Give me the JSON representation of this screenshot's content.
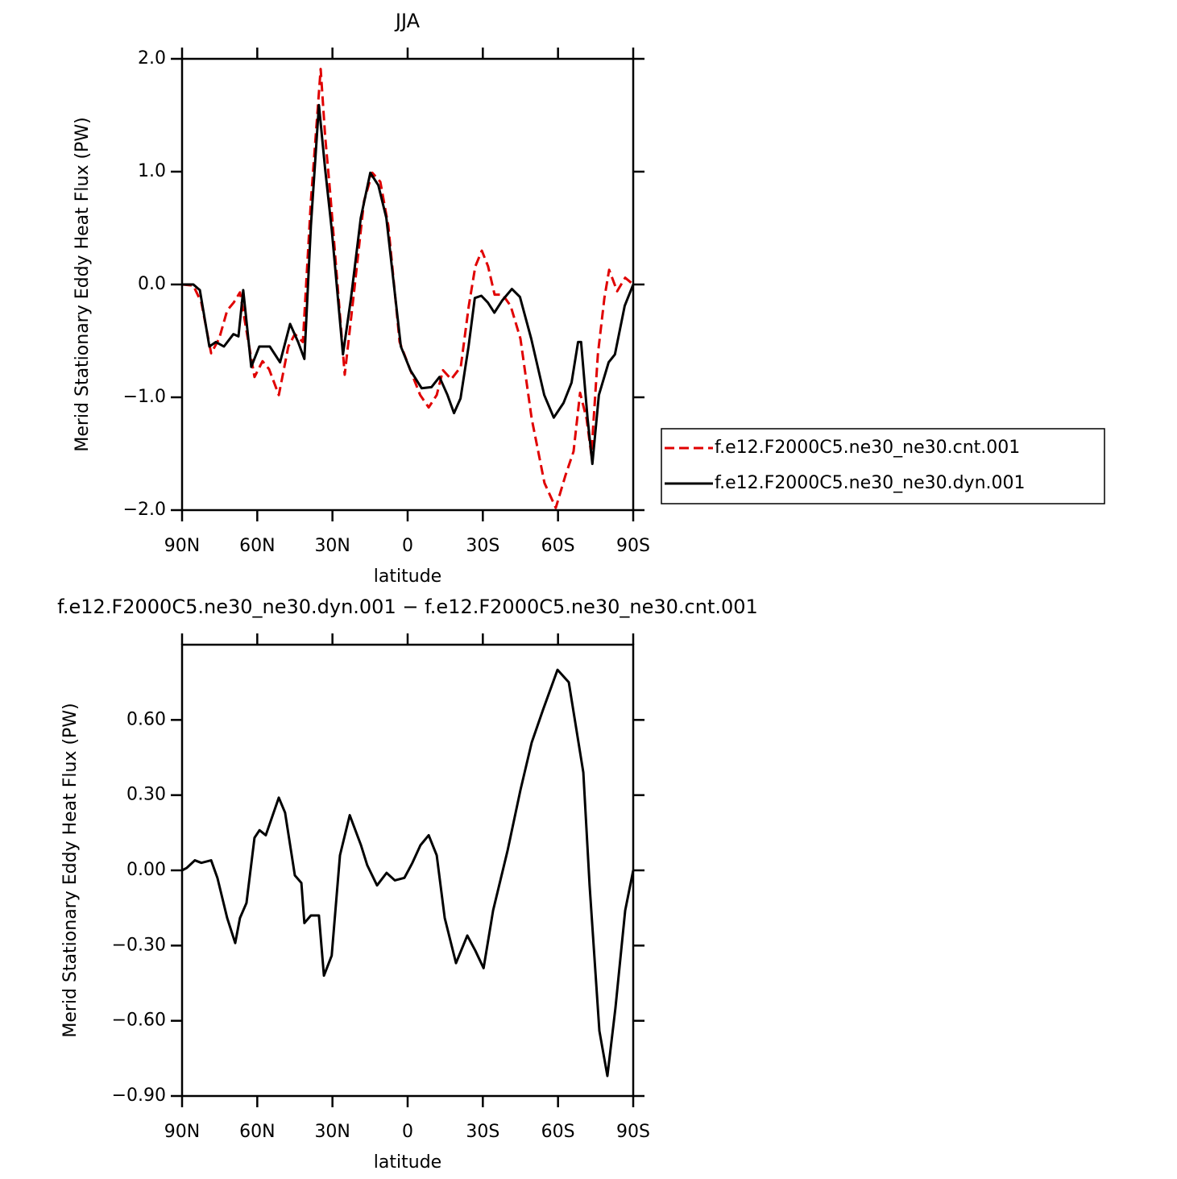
{
  "chart_data": [
    {
      "type": "line",
      "title": "JJA",
      "xlabel": "latitude",
      "ylabel": "Merid Stationary Eddy Heat Flux (PW)",
      "xlim": [
        90,
        -90
      ],
      "xticks": [
        {
          "value": 90,
          "label": "90N"
        },
        {
          "value": 60,
          "label": "60N"
        },
        {
          "value": 30,
          "label": "30N"
        },
        0,
        {
          "value": -30,
          "label": "30S"
        },
        {
          "value": -60,
          "label": "60S"
        },
        {
          "value": -90,
          "label": "90S"
        }
      ],
      "ylim": [
        -2,
        2
      ],
      "yticks": [
        {
          "value": -2,
          "label": "−2.0"
        },
        {
          "value": -1,
          "label": "−1.0"
        },
        {
          "value": 0,
          "label": "0.0"
        },
        {
          "value": 1,
          "label": "1.0"
        },
        {
          "value": 2,
          "label": "2.0"
        }
      ],
      "legend": "right",
      "series": [
        {
          "name": "f.e12.F2000C5.ne30_ne30.cnt.001",
          "color": "#e00000",
          "dash": true,
          "x": [
            90,
            85.5,
            82.3,
            78.4,
            75.2,
            72.0,
            69.4,
            66.9,
            64.3,
            61.1,
            57.9,
            55.3,
            51.4,
            47.6,
            45.0,
            41.8,
            38.6,
            34.7,
            32.9,
            30.9,
            25.1,
            21.3,
            17.4,
            14.1,
            10.9,
            7.7,
            3.2,
            -1.1,
            -5.0,
            -8.4,
            -11.6,
            -14.1,
            -17.4,
            -21.2,
            -24.4,
            -27.0,
            -29.6,
            -32.1,
            -34.7,
            -37.9,
            -41.1,
            -45.0,
            -49.5,
            -54.6,
            -59.1,
            -63.0,
            -66.2,
            -68.8,
            -71.4,
            -73.3,
            -75.9,
            -78.5,
            -80.4,
            -83.6,
            -86.8,
            -90
          ],
          "values": [
            0,
            -0.01,
            -0.16,
            -0.61,
            -0.48,
            -0.23,
            -0.16,
            -0.07,
            -0.41,
            -0.82,
            -0.68,
            -0.75,
            -0.98,
            -0.55,
            -0.44,
            -0.51,
            0.74,
            1.91,
            1.31,
            0.81,
            -0.8,
            -0.05,
            0.74,
            0.99,
            0.91,
            0.52,
            -0.51,
            -0.76,
            -0.98,
            -1.09,
            -0.98,
            -0.76,
            -0.84,
            -0.73,
            -0.19,
            0.16,
            0.3,
            0.16,
            -0.09,
            -0.09,
            -0.19,
            -0.48,
            -1.19,
            -1.76,
            -1.98,
            -1.69,
            -1.48,
            -0.96,
            -1.19,
            -1.51,
            -0.62,
            -0.12,
            0.13,
            -0.06,
            0.06,
            0
          ]
        },
        {
          "name": "f.e12.F2000C5.ne30_ne30.dyn.001",
          "color": "#000000",
          "dash": false,
          "x": [
            90,
            85.5,
            82.9,
            79.1,
            76.5,
            73.3,
            69.5,
            67.5,
            65.6,
            62.4,
            59.2,
            55.0,
            50.9,
            46.9,
            43.7,
            41.2,
            38.6,
            35.4,
            32.9,
            30.3,
            25.8,
            22.6,
            18.7,
            14.9,
            11.7,
            8.5,
            2.7,
            -1.1,
            -5.6,
            -9.5,
            -12.7,
            -15.9,
            -18.5,
            -21.1,
            -24.3,
            -26.8,
            -29.4,
            -32.0,
            -34.6,
            -37.8,
            -41.6,
            -44.8,
            -49.3,
            -54.5,
            -58.3,
            -62.2,
            -65.4,
            -68.0,
            -69.2,
            -71.8,
            -73.7,
            -76.3,
            -80.2,
            -82.7,
            -86.6,
            -90
          ],
          "values": [
            0,
            0,
            -0.05,
            -0.55,
            -0.51,
            -0.55,
            -0.44,
            -0.46,
            -0.05,
            -0.73,
            -0.55,
            -0.55,
            -0.69,
            -0.35,
            -0.51,
            -0.66,
            0.52,
            1.59,
            1.02,
            0.49,
            -0.62,
            -0.12,
            0.59,
            0.99,
            0.88,
            0.59,
            -0.55,
            -0.76,
            -0.92,
            -0.91,
            -0.82,
            -0.98,
            -1.14,
            -1.01,
            -0.55,
            -0.12,
            -0.1,
            -0.16,
            -0.25,
            -0.14,
            -0.04,
            -0.11,
            -0.48,
            -0.98,
            -1.18,
            -1.05,
            -0.87,
            -0.51,
            -0.51,
            -1.19,
            -1.59,
            -0.98,
            -0.69,
            -0.62,
            -0.19,
            0
          ]
        }
      ]
    },
    {
      "type": "line",
      "title": "f.e12.F2000C5.ne30_ne30.dyn.001 − f.e12.F2000C5.ne30_ne30.cnt.001",
      "xlabel": "latitude",
      "ylabel": "Merid Stationary Eddy Heat Flux (PW)",
      "xlim": [
        90,
        -90
      ],
      "xticks": [
        {
          "value": 90,
          "label": "90N"
        },
        {
          "value": 60,
          "label": "60N"
        },
        {
          "value": 30,
          "label": "30N"
        },
        0,
        {
          "value": -30,
          "label": "30S"
        },
        {
          "value": -60,
          "label": "60S"
        },
        {
          "value": -90,
          "label": "90S"
        }
      ],
      "ylim": [
        -0.9,
        0.9
      ],
      "yticks": [
        {
          "value": -0.9,
          "label": "−0.90"
        },
        {
          "value": -0.6,
          "label": "−0.60"
        },
        {
          "value": -0.3,
          "label": "−0.30"
        },
        {
          "value": 0,
          "label": "0.00"
        },
        {
          "value": 0.3,
          "label": "0.30"
        },
        {
          "value": 0.6,
          "label": "0.60"
        }
      ],
      "series": [
        {
          "color": "#000000",
          "dash": false,
          "x": [
            90,
            88.1,
            84.9,
            82.3,
            78.4,
            75.9,
            72.0,
            68.8,
            66.9,
            64.3,
            61.1,
            59.1,
            56.6,
            51.4,
            48.9,
            45.0,
            42.4,
            41.2,
            38.6,
            35.4,
            33.4,
            30.3,
            27.0,
            23.1,
            18.6,
            16.1,
            12.2,
            8.4,
            5.1,
            1.3,
            -1.9,
            -5.1,
            -8.4,
            -11.6,
            -14.8,
            -19.3,
            -23.8,
            -27.0,
            -30.3,
            -34.1,
            -39.9,
            -45.0,
            -49.5,
            -54.0,
            -59.8,
            -64.3,
            -70.1,
            -72.6,
            -76.5,
            -79.7,
            -82.9,
            -86.8,
            -90
          ],
          "values": [
            0,
            0.01,
            0.04,
            0.03,
            0.04,
            -0.03,
            -0.19,
            -0.29,
            -0.19,
            -0.13,
            0.13,
            0.16,
            0.14,
            0.29,
            0.23,
            -0.02,
            -0.05,
            -0.21,
            -0.18,
            -0.18,
            -0.42,
            -0.34,
            0.06,
            0.22,
            0.1,
            0.02,
            -0.06,
            -0.01,
            -0.04,
            -0.03,
            0.03,
            0.1,
            0.14,
            0.06,
            -0.19,
            -0.37,
            -0.26,
            -0.32,
            -0.39,
            -0.16,
            0.08,
            0.32,
            0.51,
            0.64,
            0.8,
            0.75,
            0.39,
            -0.06,
            -0.64,
            -0.82,
            -0.55,
            -0.16,
            0
          ]
        }
      ]
    }
  ]
}
